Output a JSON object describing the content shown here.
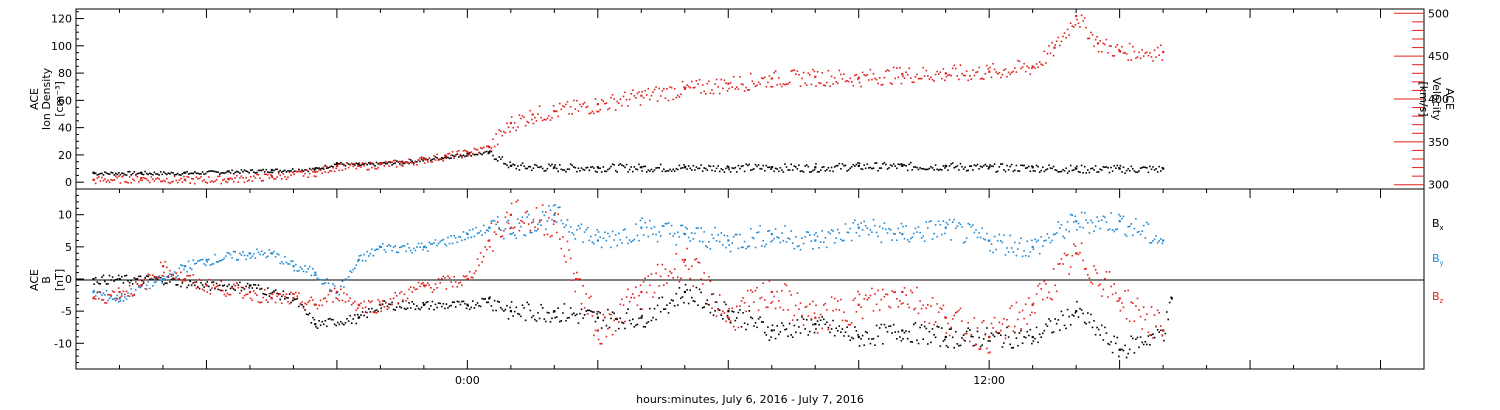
{
  "chart_data": [
    {
      "type": "scatter",
      "panel": "top",
      "title": "",
      "xlabel": "hours:minutes, July  6, 2016 - July  7, 2016",
      "x_tick_labels": [
        "0:00",
        "12:00"
      ],
      "x_range_hours": [
        -9,
        22
      ],
      "left_axis": {
        "label_lines": [
          "ACE",
          "Ion Density",
          "[cm⁻³]"
        ],
        "ticks": [
          0,
          20,
          40,
          60,
          80,
          100,
          120
        ],
        "ylim": [
          -5,
          127
        ]
      },
      "right_axis": {
        "label_lines": [
          "ACE",
          "Velocity",
          "[km/s]"
        ],
        "ticks": [
          300,
          350,
          400,
          450,
          500
        ],
        "ylim": [
          295,
          505
        ],
        "color": "#e0201b"
      },
      "series": [
        {
          "axis": "left",
          "color": "#000000",
          "points": [
            [
              -8.6,
              7
            ],
            [
              -7.5,
              7
            ],
            [
              -6.5,
              7
            ],
            [
              -5.5,
              8
            ],
            [
              -4.5,
              9
            ],
            [
              -3.5,
              10
            ],
            [
              -3,
              14
            ],
            [
              -2.5,
              13
            ],
            [
              -2,
              14
            ],
            [
              -1.5,
              15
            ],
            [
              -1,
              17
            ],
            [
              -0.5,
              19
            ],
            [
              0,
              21
            ],
            [
              0.5,
              22
            ],
            [
              1,
              12
            ],
            [
              2,
              11
            ],
            [
              3,
              11
            ],
            [
              4,
              11
            ],
            [
              5,
              11
            ],
            [
              6,
              11
            ],
            [
              7,
              11
            ],
            [
              8,
              11
            ],
            [
              9,
              12
            ],
            [
              10,
              12
            ],
            [
              11,
              12
            ],
            [
              12,
              11
            ],
            [
              13,
              11
            ],
            [
              14,
              10
            ],
            [
              15,
              10
            ],
            [
              16,
              10
            ]
          ]
        },
        {
          "axis": "right",
          "color": "#e0201b",
          "points": [
            [
              -8.6,
              306
            ],
            [
              -7.5,
              308
            ],
            [
              -6.5,
              306
            ],
            [
              -5.5,
              307
            ],
            [
              -4.5,
              310
            ],
            [
              -3.5,
              315
            ],
            [
              -3,
              322
            ],
            [
              -2.5,
              322
            ],
            [
              -2,
              324
            ],
            [
              -1.5,
              326
            ],
            [
              -1,
              330
            ],
            [
              -0.5,
              334
            ],
            [
              0,
              338
            ],
            [
              0.5,
              344
            ],
            [
              1,
              372
            ],
            [
              1.5,
              382
            ],
            [
              2,
              386
            ],
            [
              3,
              394
            ],
            [
              4,
              404
            ],
            [
              5,
              412
            ],
            [
              6,
              418
            ],
            [
              7,
              424
            ],
            [
              8,
              426
            ],
            [
              9,
              425
            ],
            [
              10,
              429
            ],
            [
              11,
              430
            ],
            [
              12,
              432
            ],
            [
              13,
              438
            ],
            [
              13.5,
              460
            ],
            [
              14,
              497
            ],
            [
              14.5,
              465
            ],
            [
              15,
              456
            ],
            [
              16,
              455
            ]
          ]
        }
      ]
    },
    {
      "type": "scatter",
      "panel": "bottom",
      "title": "",
      "x_range_hours": [
        -9,
        22
      ],
      "left_axis": {
        "label_lines": [
          "ACE",
          "B",
          "[nT]"
        ],
        "ticks": [
          -10,
          -5,
          0,
          5,
          10
        ],
        "ylim": [
          -14,
          14
        ]
      },
      "zero_line": true,
      "legend": {
        "placement": "right",
        "entries": [
          {
            "text": "B",
            "sub": "x",
            "color": "#000000"
          },
          {
            "text": "B",
            "sub": "y",
            "color": "#1e88d2"
          },
          {
            "text": "B",
            "sub": "z",
            "color": "#e0201b"
          }
        ]
      },
      "series": [
        {
          "name": "Bx",
          "color": "#000000",
          "points": [
            [
              -8.6,
              0
            ],
            [
              -8,
              0
            ],
            [
              -7,
              0
            ],
            [
              -6,
              -1
            ],
            [
              -5,
              -1
            ],
            [
              -4,
              -3
            ],
            [
              -3.5,
              -7
            ],
            [
              -2.5,
              -6
            ],
            [
              -2,
              -4
            ],
            [
              -1,
              -4
            ],
            [
              0,
              -4
            ],
            [
              0.5,
              -3
            ],
            [
              1,
              -5
            ],
            [
              2,
              -5
            ],
            [
              3,
              -6
            ],
            [
              4,
              -6
            ],
            [
              5,
              -2
            ],
            [
              6,
              -5
            ],
            [
              7,
              -8
            ],
            [
              8,
              -7
            ],
            [
              9,
              -9
            ],
            [
              10,
              -8
            ],
            [
              11,
              -9
            ],
            [
              12,
              -9
            ],
            [
              13,
              -9
            ],
            [
              14,
              -5
            ],
            [
              15,
              -11
            ],
            [
              16,
              -8
            ],
            [
              16.2,
              -3
            ]
          ]
        },
        {
          "name": "By",
          "color": "#1e88d2",
          "points": [
            [
              -8.6,
              -2
            ],
            [
              -8,
              -3
            ],
            [
              -7.5,
              -1
            ],
            [
              -7,
              0
            ],
            [
              -6.5,
              2
            ],
            [
              -6,
              3
            ],
            [
              -5,
              4
            ],
            [
              -4.5,
              4
            ],
            [
              -4,
              2
            ],
            [
              -3.5,
              1
            ],
            [
              -3,
              -2
            ],
            [
              -2.5,
              3
            ],
            [
              -2,
              5
            ],
            [
              -1,
              5
            ],
            [
              0,
              7
            ],
            [
              0.5,
              8
            ],
            [
              1,
              8
            ],
            [
              2,
              10
            ],
            [
              3,
              6
            ],
            [
              4,
              8
            ],
            [
              5,
              7
            ],
            [
              6,
              6
            ],
            [
              7,
              7
            ],
            [
              8,
              6
            ],
            [
              9,
              8
            ],
            [
              10,
              7
            ],
            [
              11,
              8
            ],
            [
              12,
              6
            ],
            [
              13,
              5
            ],
            [
              14,
              9
            ],
            [
              15,
              9
            ],
            [
              16,
              6
            ]
          ]
        },
        {
          "name": "Bz",
          "color": "#e0201b",
          "points": [
            [
              -8.6,
              -3
            ],
            [
              -8,
              -2
            ],
            [
              -7.5,
              -1
            ],
            [
              -7,
              2
            ],
            [
              -6.5,
              0
            ],
            [
              -6,
              -1
            ],
            [
              -5,
              -2
            ],
            [
              -4.5,
              -3
            ],
            [
              -4,
              -3
            ],
            [
              -3.5,
              -4
            ],
            [
              -3,
              -2
            ],
            [
              -2.5,
              -4
            ],
            [
              -2,
              -4
            ],
            [
              -1,
              -1
            ],
            [
              0,
              0
            ],
            [
              0.5,
              6
            ],
            [
              1,
              10
            ],
            [
              2,
              9
            ],
            [
              2.5,
              0
            ],
            [
              3,
              -8
            ],
            [
              4,
              -2
            ],
            [
              5,
              3
            ],
            [
              6,
              -6
            ],
            [
              7,
              -2
            ],
            [
              8,
              -6
            ],
            [
              9,
              -4
            ],
            [
              10,
              -2
            ],
            [
              11,
              -6
            ],
            [
              12,
              -9
            ],
            [
              13,
              -4
            ],
            [
              14,
              4
            ],
            [
              15,
              -3
            ],
            [
              16,
              -8
            ]
          ]
        }
      ]
    }
  ]
}
